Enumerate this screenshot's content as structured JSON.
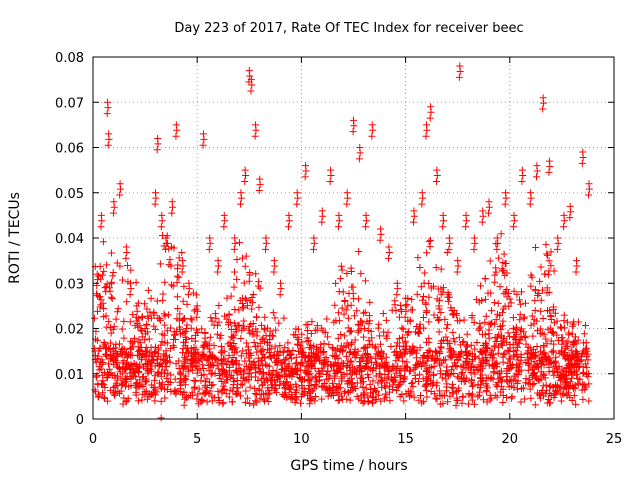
{
  "chart_data": {
    "type": "scatter",
    "title": "Day 223 of 2017, Rate Of TEC Index for receiver beec",
    "xlabel": "GPS time / hours",
    "ylabel": "ROTI / TECUs",
    "xlim": [
      0,
      25
    ],
    "ylim": [
      0,
      0.08
    ],
    "x_ticks": [
      "0",
      "5",
      "10",
      "15",
      "20",
      "25"
    ],
    "y_ticks": [
      "0",
      "0.01",
      "0.02",
      "0.03",
      "0.04",
      "0.05",
      "0.06",
      "0.07",
      "0.08"
    ],
    "grid": true,
    "marker": "+",
    "color": "#ff0000",
    "series": [
      {
        "name": "ROTI",
        "x": [
          0.2,
          0.4,
          0.7,
          0.75,
          1.0,
          1.3,
          1.6,
          1.8,
          2.1,
          2.5,
          3.0,
          3.1,
          3.3,
          3.5,
          3.8,
          4.0,
          4.3,
          4.6,
          5.0,
          5.3,
          5.6,
          6.0,
          6.3,
          6.8,
          7.1,
          7.3,
          7.5,
          7.6,
          7.8,
          8.0,
          8.3,
          8.7,
          9.0,
          9.4,
          9.8,
          10.2,
          10.6,
          11.0,
          11.4,
          11.8,
          12.2,
          12.5,
          12.8,
          13.1,
          13.4,
          13.8,
          14.2,
          14.6,
          15.0,
          15.4,
          15.8,
          16.0,
          16.2,
          16.5,
          16.8,
          17.1,
          17.5,
          17.6,
          17.9,
          18.3,
          18.7,
          19.0,
          19.4,
          19.8,
          20.2,
          20.6,
          21.0,
          21.3,
          21.6,
          21.9,
          22.3,
          22.6,
          22.9,
          23.2,
          23.5,
          23.8
        ],
        "y": [
          0.032,
          0.045,
          0.07,
          0.063,
          0.048,
          0.052,
          0.038,
          0.03,
          0.025,
          0.02,
          0.05,
          0.062,
          0.045,
          0.04,
          0.048,
          0.065,
          0.035,
          0.03,
          0.025,
          0.063,
          0.04,
          0.035,
          0.045,
          0.04,
          0.05,
          0.055,
          0.077,
          0.075,
          0.065,
          0.053,
          0.04,
          0.035,
          0.03,
          0.045,
          0.05,
          0.056,
          0.04,
          0.046,
          0.055,
          0.045,
          0.05,
          0.066,
          0.06,
          0.045,
          0.065,
          0.042,
          0.038,
          0.03,
          0.025,
          0.046,
          0.05,
          0.065,
          0.069,
          0.055,
          0.045,
          0.04,
          0.035,
          0.078,
          0.045,
          0.04,
          0.046,
          0.048,
          0.04,
          0.05,
          0.045,
          0.055,
          0.05,
          0.056,
          0.071,
          0.057,
          0.04,
          0.045,
          0.047,
          0.035,
          0.059,
          0.052
        ]
      }
    ],
    "bulk_band": [
      0.003,
      0.03
    ]
  }
}
